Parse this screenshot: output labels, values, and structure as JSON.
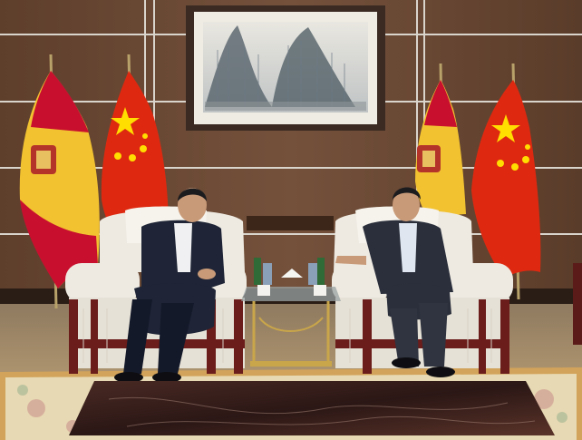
{
  "scene": {
    "description_tag": "photo",
    "painting_inscription": "",
    "colors": {
      "wall_wood": "#6b4a36",
      "wall_wood_dark": "#4e3424",
      "wall_stripe": "#d9d4cc",
      "floor": "#b89a6e",
      "rug": "#e7d9b3",
      "rug_border": "#d2a35a",
      "chair": "#eeeae2",
      "chair_shadow": "#d6d0c4",
      "chair_trim": "#6b1d1b",
      "suit": "#1f2536",
      "suit_dark": "#14192a",
      "skin": "#c99a78",
      "table_top": "#3b2320",
      "spain_red": "#c8102e",
      "spain_yellow": "#f2c230",
      "china_red": "#de2910",
      "china_star": "#ffde00"
    }
  }
}
